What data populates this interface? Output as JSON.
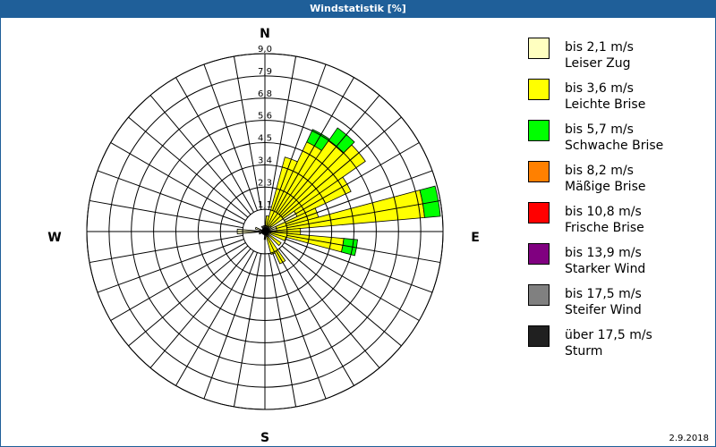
{
  "window_title": "Windstatistik [%]",
  "date": "2.9.2018",
  "chart_data": {
    "type": "windrose",
    "title": "Windstatistik [%]",
    "directions": {
      "N": "N",
      "E": "E",
      "S": "S",
      "W": "W"
    },
    "rmax": 9.0,
    "ring_labels": [
      "1,1",
      "2,3",
      "3,4",
      "4,5",
      "5,6",
      "6,8",
      "7,9",
      "9,0"
    ],
    "ring_values": [
      1.125,
      2.25,
      3.375,
      4.5,
      5.625,
      6.75,
      7.875,
      9.0
    ],
    "sector_width_deg": 10,
    "classes": [
      {
        "range": "bis 2,1 m/s",
        "name": "Leiser Zug",
        "color": "#ffffc0"
      },
      {
        "range": "bis 3,6 m/s",
        "name": "Leichte Brise",
        "color": "#ffff00"
      },
      {
        "range": "bis 5,7 m/s",
        "name": "Schwache Brise",
        "color": "#00ff00"
      },
      {
        "range": "bis 8,2 m/s",
        "name": "Mäßige Brise",
        "color": "#ff8000"
      },
      {
        "range": "bis 10,8 m/s",
        "name": "Frische Brise",
        "color": "#ff0000"
      },
      {
        "range": "bis 13,9 m/s",
        "name": "Starker Wind",
        "color": "#800080"
      },
      {
        "range": "bis 17,5 m/s",
        "name": "Steifer Wind",
        "color": "#808080"
      },
      {
        "range": "über 17,5 m/s",
        "name": "Sturm",
        "color": "#202020"
      }
    ],
    "sectors": [
      {
        "dir": 10,
        "values": [
          0.3,
          0.5,
          0
        ]
      },
      {
        "dir": 20,
        "values": [
          0.3,
          3.6,
          0
        ]
      },
      {
        "dir": 30,
        "values": [
          0.3,
          4.7,
          0.7
        ]
      },
      {
        "dir": 40,
        "values": [
          0.3,
          5.3,
          0.8
        ]
      },
      {
        "dir": 50,
        "values": [
          0.4,
          5.8,
          0
        ]
      },
      {
        "dir": 60,
        "values": [
          1.8,
          3.0,
          0
        ]
      },
      {
        "dir": 70,
        "values": [
          0.6,
          2.2,
          0
        ]
      },
      {
        "dir": 80,
        "values": [
          0.6,
          7.5,
          0.8
        ]
      },
      {
        "dir": 90,
        "values": [
          0.4,
          1.4,
          0
        ]
      },
      {
        "dir": 100,
        "values": [
          0.3,
          3.7,
          0.7
        ]
      },
      {
        "dir": 110,
        "values": [
          0.2,
          0.9,
          0
        ]
      },
      {
        "dir": 130,
        "values": [
          0.2,
          0.8,
          0
        ]
      },
      {
        "dir": 150,
        "values": [
          0.3,
          1.5,
          0
        ]
      },
      {
        "dir": 160,
        "values": [
          0.2,
          1.0,
          0
        ]
      },
      {
        "dir": 180,
        "values": [
          0.2,
          0.2,
          0
        ]
      },
      {
        "dir": 250,
        "values": [
          0.3,
          0,
          0
        ]
      },
      {
        "dir": 270,
        "values": [
          1.4,
          0,
          0
        ]
      },
      {
        "dir": 290,
        "values": [
          0.5,
          0,
          0
        ]
      },
      {
        "dir": 330,
        "values": [
          0.3,
          0,
          0
        ]
      },
      {
        "dir": 350,
        "values": [
          0.3,
          0,
          0
        ]
      }
    ]
  }
}
